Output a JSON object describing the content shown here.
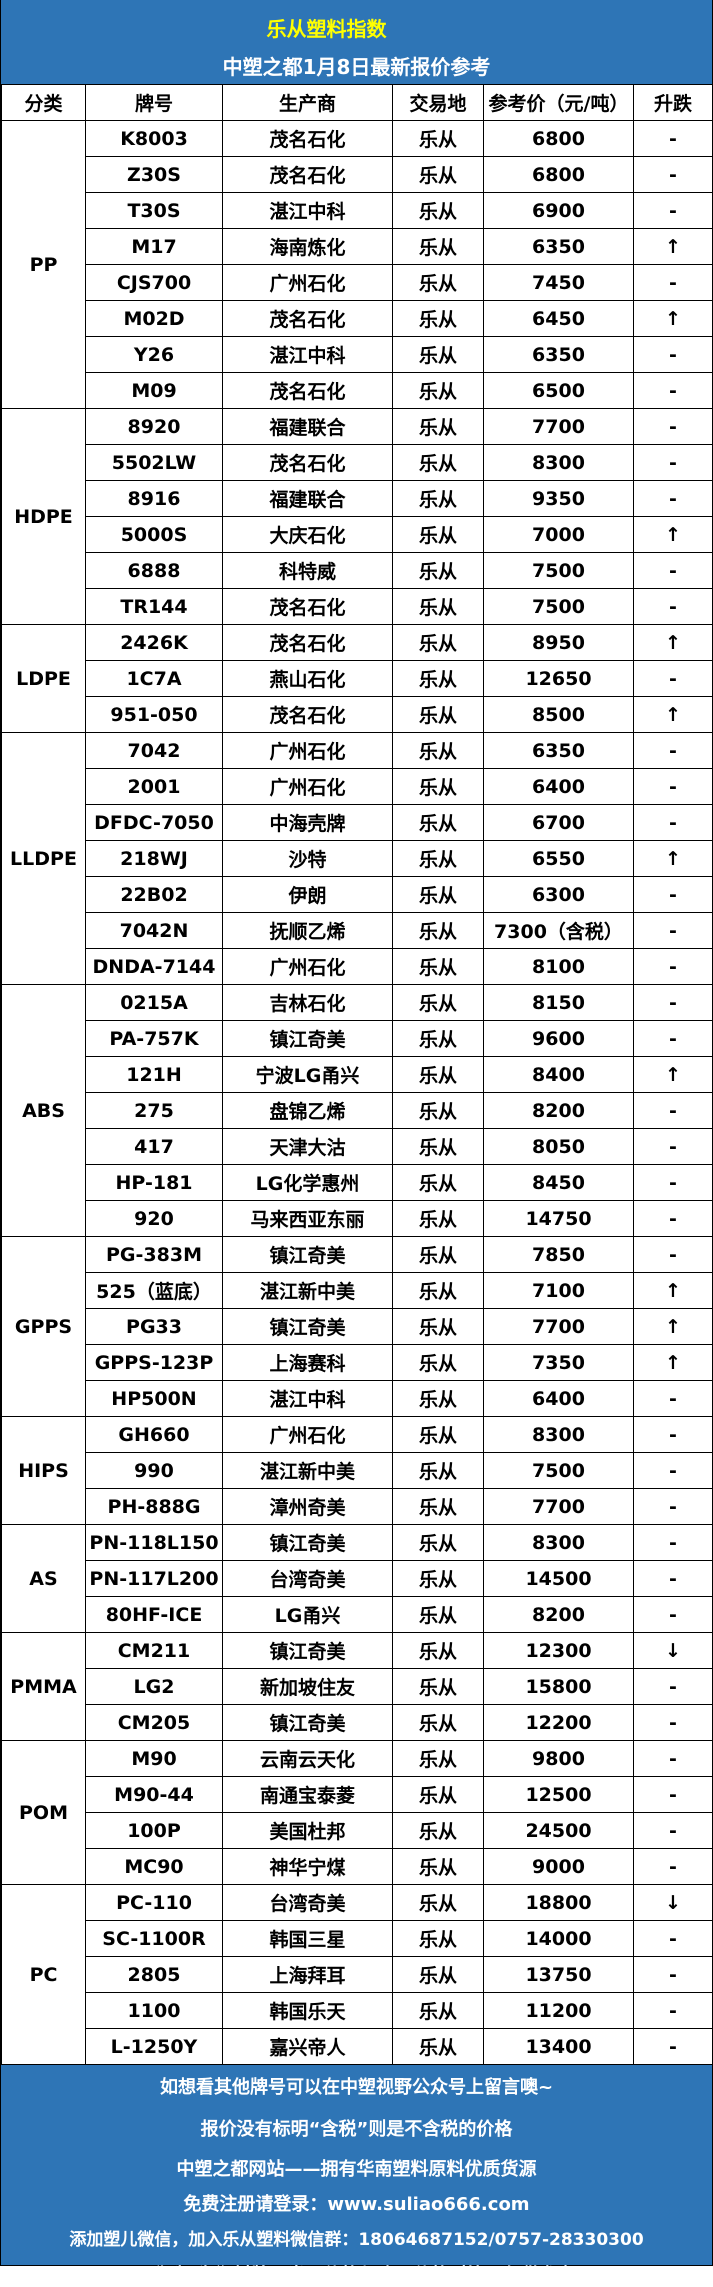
{
  "header": {
    "title": "乐从塑料指数",
    "subtitle": "中塑之都1月8日最新报价参考"
  },
  "columns": [
    "分类",
    "牌号",
    "生产商",
    "交易地",
    "参考价（元/吨）",
    "升跌"
  ],
  "colors": {
    "header_bg": "#2e75b6",
    "title": "#ffff00",
    "text": "#000000"
  },
  "groups": [
    {
      "category": "PP",
      "rows": [
        [
          "K8003",
          "茂名石化",
          "乐从",
          "6800",
          "-"
        ],
        [
          "Z30S",
          "茂名石化",
          "乐从",
          "6800",
          "-"
        ],
        [
          "T30S",
          "湛江中科",
          "乐从",
          "6900",
          "-"
        ],
        [
          "M17",
          "海南炼化",
          "乐从",
          "6350",
          "↑"
        ],
        [
          "CJS700",
          "广州石化",
          "乐从",
          "7450",
          "-"
        ],
        [
          "M02D",
          "茂名石化",
          "乐从",
          "6450",
          "↑"
        ],
        [
          "Y26",
          "湛江中科",
          "乐从",
          "6350",
          "-"
        ],
        [
          "M09",
          "茂名石化",
          "乐从",
          "6500",
          "-"
        ]
      ]
    },
    {
      "category": "HDPE",
      "rows": [
        [
          "8920",
          "福建联合",
          "乐从",
          "7700",
          "-"
        ],
        [
          "5502LW",
          "茂名石化",
          "乐从",
          "8300",
          "-"
        ],
        [
          "8916",
          "福建联合",
          "乐从",
          "9350",
          "-"
        ],
        [
          "5000S",
          "大庆石化",
          "乐从",
          "7000",
          "↑"
        ],
        [
          "6888",
          "科特威",
          "乐从",
          "7500",
          "-"
        ],
        [
          "TR144",
          "茂名石化",
          "乐从",
          "7500",
          "-"
        ]
      ]
    },
    {
      "category": "LDPE",
      "rows": [
        [
          "2426K",
          "茂名石化",
          "乐从",
          "8950",
          "↑"
        ],
        [
          "1C7A",
          "燕山石化",
          "乐从",
          "12650",
          "-"
        ],
        [
          "951-050",
          "茂名石化",
          "乐从",
          "8500",
          "↑"
        ]
      ]
    },
    {
      "category": "LLDPE",
      "rows": [
        [
          "7042",
          "广州石化",
          "乐从",
          "6350",
          "-"
        ],
        [
          "2001",
          "广州石化",
          "乐从",
          "6400",
          "-"
        ],
        [
          "DFDC-7050",
          "中海壳牌",
          "乐从",
          "6700",
          "-"
        ],
        [
          "218WJ",
          "沙特",
          "乐从",
          "6550",
          "↑"
        ],
        [
          "22B02",
          "伊朗",
          "乐从",
          "6300",
          "-"
        ],
        [
          "7042N",
          "抚顺乙烯",
          "乐从",
          "7300（含税）",
          "-"
        ],
        [
          "DNDA-7144",
          "广州石化",
          "乐从",
          "8100",
          "-"
        ]
      ]
    },
    {
      "category": "ABS",
      "rows": [
        [
          "0215A",
          "吉林石化",
          "乐从",
          "8150",
          "-"
        ],
        [
          "PA-757K",
          "镇江奇美",
          "乐从",
          "9600",
          "-"
        ],
        [
          "121H",
          "宁波LG甬兴",
          "乐从",
          "8400",
          "↑"
        ],
        [
          "275",
          "盘锦乙烯",
          "乐从",
          "8200",
          "-"
        ],
        [
          "417",
          "天津大沽",
          "乐从",
          "8050",
          "-"
        ],
        [
          "HP-181",
          "LG化学惠州",
          "乐从",
          "8450",
          "-"
        ],
        [
          "920",
          "马来西亚东丽",
          "乐从",
          "14750",
          "-"
        ]
      ]
    },
    {
      "category": "GPPS",
      "rows": [
        [
          "PG-383M",
          "镇江奇美",
          "乐从",
          "7850",
          "-"
        ],
        [
          "525（蓝底）",
          "湛江新中美",
          "乐从",
          "7100",
          "↑"
        ],
        [
          "PG33",
          "镇江奇美",
          "乐从",
          "7700",
          "↑"
        ],
        [
          "GPPS-123P",
          "上海赛科",
          "乐从",
          "7350",
          "↑"
        ],
        [
          "HP500N",
          "湛江中科",
          "乐从",
          "6400",
          "-"
        ]
      ]
    },
    {
      "category": "HIPS",
      "rows": [
        [
          "GH660",
          "广州石化",
          "乐从",
          "8300",
          "-"
        ],
        [
          "990",
          "湛江新中美",
          "乐从",
          "7500",
          "-"
        ],
        [
          "PH-888G",
          "漳州奇美",
          "乐从",
          "7700",
          "-"
        ]
      ]
    },
    {
      "category": "AS",
      "rows": [
        [
          "PN-118L150",
          "镇江奇美",
          "乐从",
          "8300",
          "-"
        ],
        [
          "PN-117L200",
          "台湾奇美",
          "乐从",
          "14500",
          "-"
        ],
        [
          "80HF-ICE",
          "LG甬兴",
          "乐从",
          "8200",
          "-"
        ]
      ]
    },
    {
      "category": "PMMA",
      "rows": [
        [
          "CM211",
          "镇江奇美",
          "乐从",
          "12300",
          "↓"
        ],
        [
          "LG2",
          "新加坡住友",
          "乐从",
          "15800",
          "-"
        ],
        [
          "CM205",
          "镇江奇美",
          "乐从",
          "12200",
          "-"
        ]
      ]
    },
    {
      "category": "POM",
      "rows": [
        [
          "M90",
          "云南云天化",
          "乐从",
          "9800",
          "-"
        ],
        [
          "M90-44",
          "南通宝泰菱",
          "乐从",
          "12500",
          "-"
        ],
        [
          "100P",
          "美国杜邦",
          "乐从",
          "24500",
          "-"
        ],
        [
          "MC90",
          "神华宁煤",
          "乐从",
          "9000",
          "-"
        ]
      ]
    },
    {
      "category": "PC",
      "rows": [
        [
          "PC-110",
          "台湾奇美",
          "乐从",
          "18800",
          "↓"
        ],
        [
          "SC-1100R",
          "韩国三星",
          "乐从",
          "14000",
          "-"
        ],
        [
          "2805",
          "上海拜耳",
          "乐从",
          "13750",
          "-"
        ],
        [
          "1100",
          "韩国乐天",
          "乐从",
          "11200",
          "-"
        ],
        [
          "L-1250Y",
          "嘉兴帝人",
          "乐从",
          "13400",
          "-"
        ]
      ]
    }
  ],
  "footer": {
    "lines": [
      "如想看其他牌号可以在中塑视野公众号上留言噢~",
      "报价没有标明“含税”则是不含税的价格",
      "中塑之都网站——拥有华南塑料原料优质货源",
      "免费注册请登录：www.suliao666.com",
      "添加塑儿微信，加入乐从塑料微信群：18064687152/0757-28330300",
      "“升跌”为塑料牌号当日价格与昨日价格对比，仅供参考"
    ]
  }
}
